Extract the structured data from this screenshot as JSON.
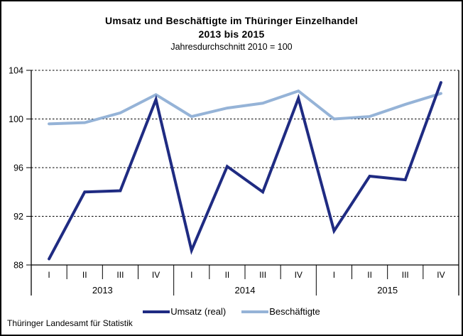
{
  "title": {
    "line1": "Umsatz und Beschäftigte im Thüringer Einzelhandel",
    "line2": "2013 bis 2015",
    "subtitle": "Jahresdurchschnitt 2010 = 100"
  },
  "footer": "Thüringer Landesamt für Statistik",
  "colors": {
    "umsatz_line": "#1F2B82",
    "beschaeftigte_line": "#95B3D7",
    "axis": "#000000"
  },
  "chart_data": {
    "type": "line",
    "title": "Umsatz und Beschäftigte im Thüringer Einzelhandel 2013 bis 2015",
    "subtitle": "Jahresdurchschnitt 2010 = 100",
    "x_quarters": [
      "I",
      "II",
      "III",
      "IV",
      "I",
      "II",
      "III",
      "IV",
      "I",
      "II",
      "III",
      "IV"
    ],
    "years": [
      "2013",
      "2014",
      "2015"
    ],
    "quarters_per_year": 4,
    "series": [
      {
        "name": "Umsatz (real)",
        "color": "#1F2B82",
        "values": [
          88.5,
          94.0,
          94.1,
          101.6,
          89.2,
          96.1,
          94.0,
          101.7,
          90.8,
          95.3,
          95.0,
          103.0
        ]
      },
      {
        "name": "Beschäftigte",
        "color": "#95B3D7",
        "values": [
          99.6,
          99.7,
          100.5,
          102.0,
          100.2,
          100.9,
          101.3,
          102.3,
          100.0,
          100.2,
          101.2,
          102.1
        ]
      }
    ],
    "ylim": [
      88,
      104
    ],
    "yticks": [
      88,
      92,
      96,
      100,
      104
    ],
    "grid": "horizontal-dashed",
    "legend_position": "bottom"
  }
}
